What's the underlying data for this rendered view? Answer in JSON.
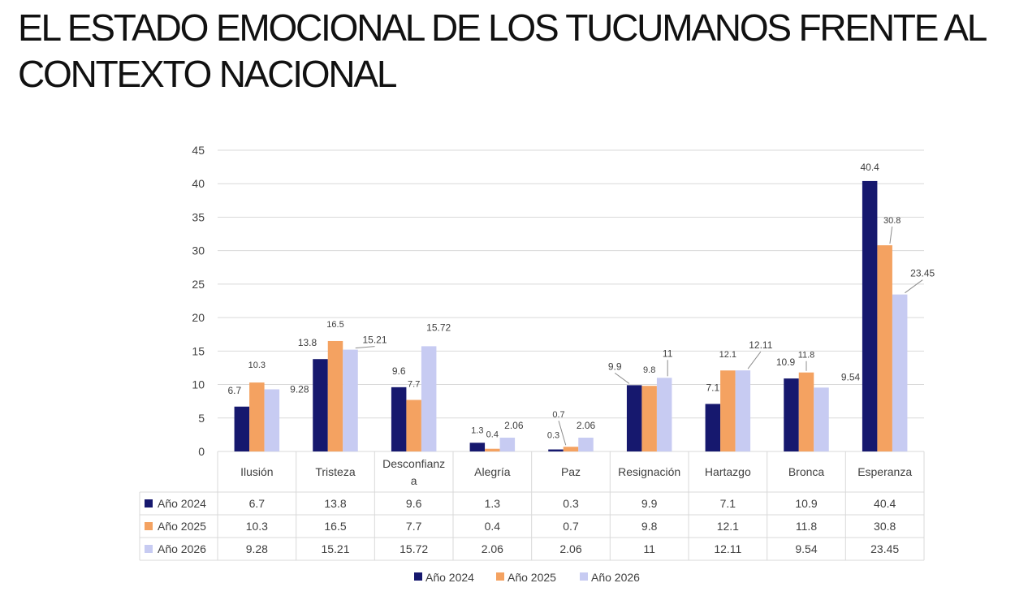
{
  "page": {
    "title_line1": "EL ESTADO EMOCIONAL DE LOS TUCUMANOS FRENTE AL",
    "title_line2": "CONTEXTO NACIONAL"
  },
  "chart_data": {
    "type": "bar",
    "title": "",
    "xlabel": "",
    "ylabel": "",
    "ylim": [
      0,
      45
    ],
    "yticks": [
      0,
      5,
      10,
      15,
      20,
      25,
      30,
      35,
      40,
      45
    ],
    "grid": true,
    "legend_position": "bottom",
    "categories": [
      "Ilusión",
      "Tristeza",
      "Desconfianza",
      "Alegría",
      "Paz",
      "Resignación",
      "Hartazgo",
      "Bronca",
      "Esperanza"
    ],
    "category_label_lines": [
      [
        "Ilusión"
      ],
      [
        "Tristeza"
      ],
      [
        "Desconfianz",
        "a"
      ],
      [
        "Alegría"
      ],
      [
        "Paz"
      ],
      [
        "Resignación"
      ],
      [
        "Hartazgo"
      ],
      [
        "Bronca"
      ],
      [
        "Esperanza"
      ]
    ],
    "series": [
      {
        "name": "Año 2024",
        "color": "#16186e",
        "values": [
          6.7,
          13.8,
          9.6,
          1.3,
          0.3,
          9.9,
          7.1,
          10.9,
          40.4
        ]
      },
      {
        "name": "Año 2025",
        "color": "#f4a261",
        "values": [
          10.3,
          16.5,
          7.7,
          0.4,
          0.7,
          9.8,
          12.1,
          11.8,
          30.8
        ]
      },
      {
        "name": "Año 2026",
        "color": "#c7cbf2",
        "values": [
          9.28,
          15.21,
          15.72,
          2.06,
          2.06,
          11,
          12.11,
          9.54,
          23.45
        ]
      }
    ],
    "data_table": true,
    "gridline_color": "#d9d9d9",
    "table_border_color": "#d9d9d9"
  }
}
